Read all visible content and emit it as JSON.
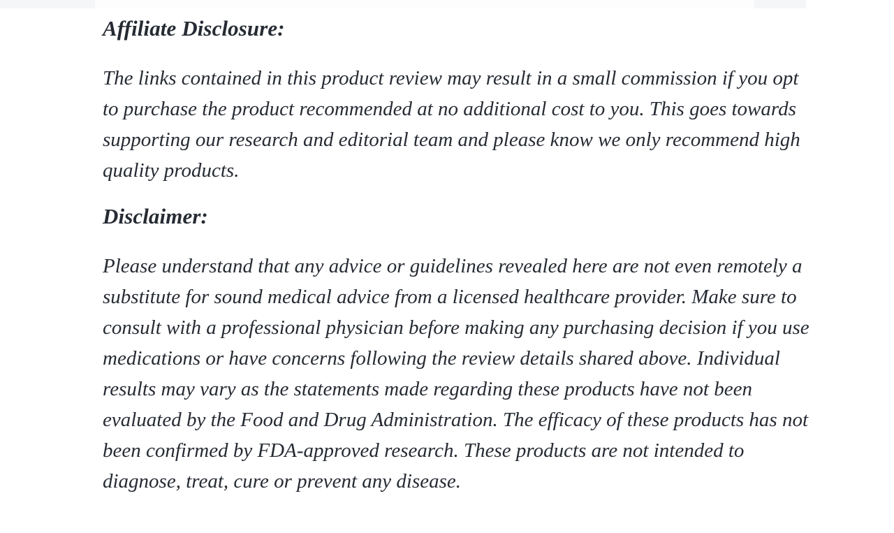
{
  "colors": {
    "background": "#ffffff",
    "text": "#262b33",
    "top_edge_artifact": "#f5f6f7"
  },
  "article": {
    "sections": [
      {
        "heading": "Affiliate Disclosure:",
        "body": "The links contained in this product review may result in a small commission if you opt to purchase the product recommended at no additional cost to you. This goes towards supporting our research and editorial team and please know we only recommend high quality products."
      },
      {
        "heading": "Disclaimer:",
        "body": "Please understand that any advice or guidelines revealed here are not even remotely a substitute for sound medical advice from a licensed healthcare provider. Make sure to consult with a professional physician before making any purchasing decision if you use medications or have concerns following the review details shared above. Individual results may vary as the statements made regarding these products have not been evaluated by the Food and Drug Administration. The efficacy of these products has not been confirmed by FDA-approved research. These products are not intended to diagnose, treat, cure or prevent any disease."
      }
    ]
  }
}
